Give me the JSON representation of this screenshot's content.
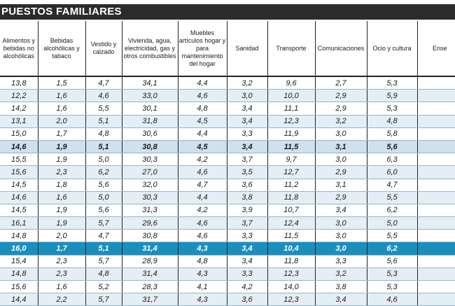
{
  "title": "PUESTOS FAMILIARES",
  "headers": [
    "Alimentos y bebidas no alcohólicas",
    "Bebidas alcohólicas y tabaco",
    "Vestido y calzado",
    "Vivienda, agua, electricidad, gas y otros combustibles",
    "Muebles artículos hogar y para mantenimiento del hogar",
    "Sanidad",
    "Transporte",
    "Comunicaciones",
    "Ocio y cultura",
    "Ense"
  ],
  "rows": [
    [
      "13,8",
      "1,5",
      "4,7",
      "34,1",
      "4,4",
      "3,2",
      "9,6",
      "2,7",
      "5,3",
      ""
    ],
    [
      "12,2",
      "1,6",
      "4,6",
      "33,0",
      "4,6",
      "3,0",
      "10,0",
      "2,9",
      "5,9",
      ""
    ],
    [
      "14,2",
      "1,6",
      "5,5",
      "30,1",
      "4,8",
      "3,4",
      "11,1",
      "2,9",
      "5,3",
      ""
    ],
    [
      "13,1",
      "2,0",
      "5,1",
      "31,8",
      "4,5",
      "3,4",
      "12,3",
      "3,2",
      "4,8",
      ""
    ],
    [
      "15,0",
      "1,7",
      "4,8",
      "30,6",
      "4,4",
      "3,3",
      "11,9",
      "3,0",
      "5,8",
      ""
    ],
    [
      "14,6",
      "1,9",
      "5,1",
      "30,8",
      "4,5",
      "3,4",
      "11,5",
      "3,1",
      "5,6",
      ""
    ],
    [
      "15,5",
      "1,9",
      "5,0",
      "30,3",
      "4,2",
      "3,7",
      "9,7",
      "3,0",
      "6,3",
      ""
    ],
    [
      "15,6",
      "2,3",
      "6,2",
      "27,0",
      "4,6",
      "3,5",
      "12,7",
      "2,9",
      "6,0",
      ""
    ],
    [
      "14,5",
      "1,8",
      "5,6",
      "32,0",
      "4,7",
      "3,6",
      "11,2",
      "3,1",
      "4,7",
      ""
    ],
    [
      "14,6",
      "1,6",
      "5,0",
      "30,3",
      "4,4",
      "3,8",
      "11,8",
      "2,9",
      "5,5",
      ""
    ],
    [
      "14,5",
      "1,9",
      "5,6",
      "31,3",
      "4,2",
      "3,9",
      "10,7",
      "3,4",
      "6,2",
      ""
    ],
    [
      "16,1",
      "1,9",
      "5,7",
      "29,6",
      "4,6",
      "3,7",
      "12,4",
      "3,0",
      "5,0",
      ""
    ],
    [
      "14,8",
      "2,0",
      "4,7",
      "30,8",
      "4,6",
      "3,3",
      "11,5",
      "3,0",
      "5,5",
      ""
    ],
    [
      "16,0",
      "1,7",
      "5,1",
      "31,4",
      "4,3",
      "3,4",
      "10,4",
      "3,0",
      "6,2",
      ""
    ],
    [
      "15,4",
      "2,3",
      "5,7",
      "28,9",
      "4,8",
      "3,4",
      "11,8",
      "3,3",
      "5,6",
      ""
    ],
    [
      "14,8",
      "2,3",
      "4,8",
      "31,4",
      "4,3",
      "3,3",
      "12,3",
      "3,2",
      "5,3",
      ""
    ],
    [
      "15,6",
      "1,6",
      "5,2",
      "28,3",
      "4,1",
      "4,2",
      "14,0",
      "3,8",
      "5,3",
      ""
    ],
    [
      "14,4",
      "2,2",
      "5,7",
      "31,7",
      "4,3",
      "3,6",
      "12,3",
      "3,4",
      "4,6",
      ""
    ]
  ],
  "row_styles": [
    "light",
    "tint",
    "light",
    "tint",
    "light",
    "highlight",
    "light",
    "tint",
    "light",
    "tint",
    "light",
    "tint",
    "light",
    "total",
    "light",
    "tint",
    "light",
    "tint"
  ],
  "colors": {
    "title_bg": "#2b2b2b",
    "highlight": "#cfe1ec",
    "total": "#1a8fbe",
    "tint": "#e4eef4"
  }
}
